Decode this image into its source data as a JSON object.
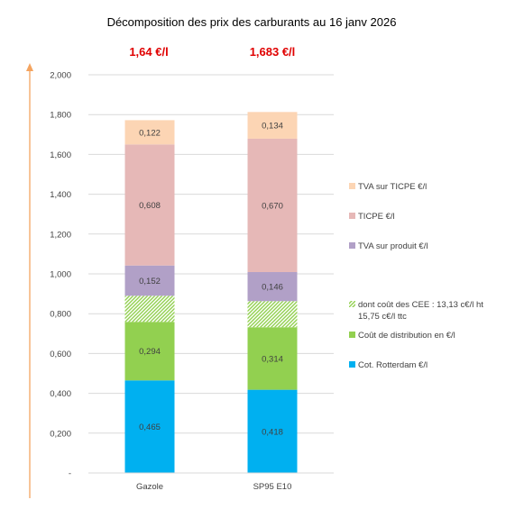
{
  "chart_data": {
    "type": "bar",
    "stacked": true,
    "title": "Décomposition des prix des carburants au 16 janv 2026",
    "price_labels": [
      "1,64 €/l",
      "1,683 €/l"
    ],
    "categories": [
      "Gazole",
      "SP95 E10"
    ],
    "ylim": [
      0,
      2.0
    ],
    "yticks": [
      0,
      0.2,
      0.4,
      0.6,
      0.8,
      1.0,
      1.2,
      1.4,
      1.6,
      1.8,
      2.0
    ],
    "ytick_labels": [
      "-",
      "0,200",
      "0,400",
      "0,600",
      "0,800",
      "1,000",
      "1,200",
      "1,400",
      "1,600",
      "1,800",
      "2,000"
    ],
    "grid": true,
    "legend_position": "right",
    "series": [
      {
        "name": "Cot. Rotterdam €/l",
        "color": "#00b0f0",
        "values": [
          0.465,
          0.418
        ],
        "labels": [
          "0,465",
          "0,418"
        ]
      },
      {
        "name": "Coût de distribution en €/l",
        "color": "#92d050",
        "values": [
          0.294,
          0.314
        ],
        "labels": [
          "0,294",
          "0,314"
        ]
      },
      {
        "name": "dont coût des CEE : 13,13 c€/l ht 15,75 c€/l ttc",
        "legend_lines": [
          "dont coût des CEE : 13,13 c€/l ht",
          "15,75 c€/l ttc"
        ],
        "color": "#92d050",
        "pattern": "hatch",
        "values": [
          0.131,
          0.131
        ],
        "labels": [
          "",
          ""
        ]
      },
      {
        "name": "TVA sur produit €/l",
        "color": "#b1a0c7",
        "values": [
          0.152,
          0.146
        ],
        "labels": [
          "0,152",
          "0,146"
        ]
      },
      {
        "name": "TICPE €/l",
        "color": "#e6b8b7",
        "values": [
          0.608,
          0.67
        ],
        "labels": [
          "0,608",
          "0,670"
        ]
      },
      {
        "name": "TVA sur TICPE €/l",
        "color": "#fcd5b4",
        "values": [
          0.122,
          0.134
        ],
        "labels": [
          "0,122",
          "0,134"
        ]
      }
    ],
    "legend_order": [
      5,
      4,
      3,
      2,
      1,
      0
    ]
  }
}
